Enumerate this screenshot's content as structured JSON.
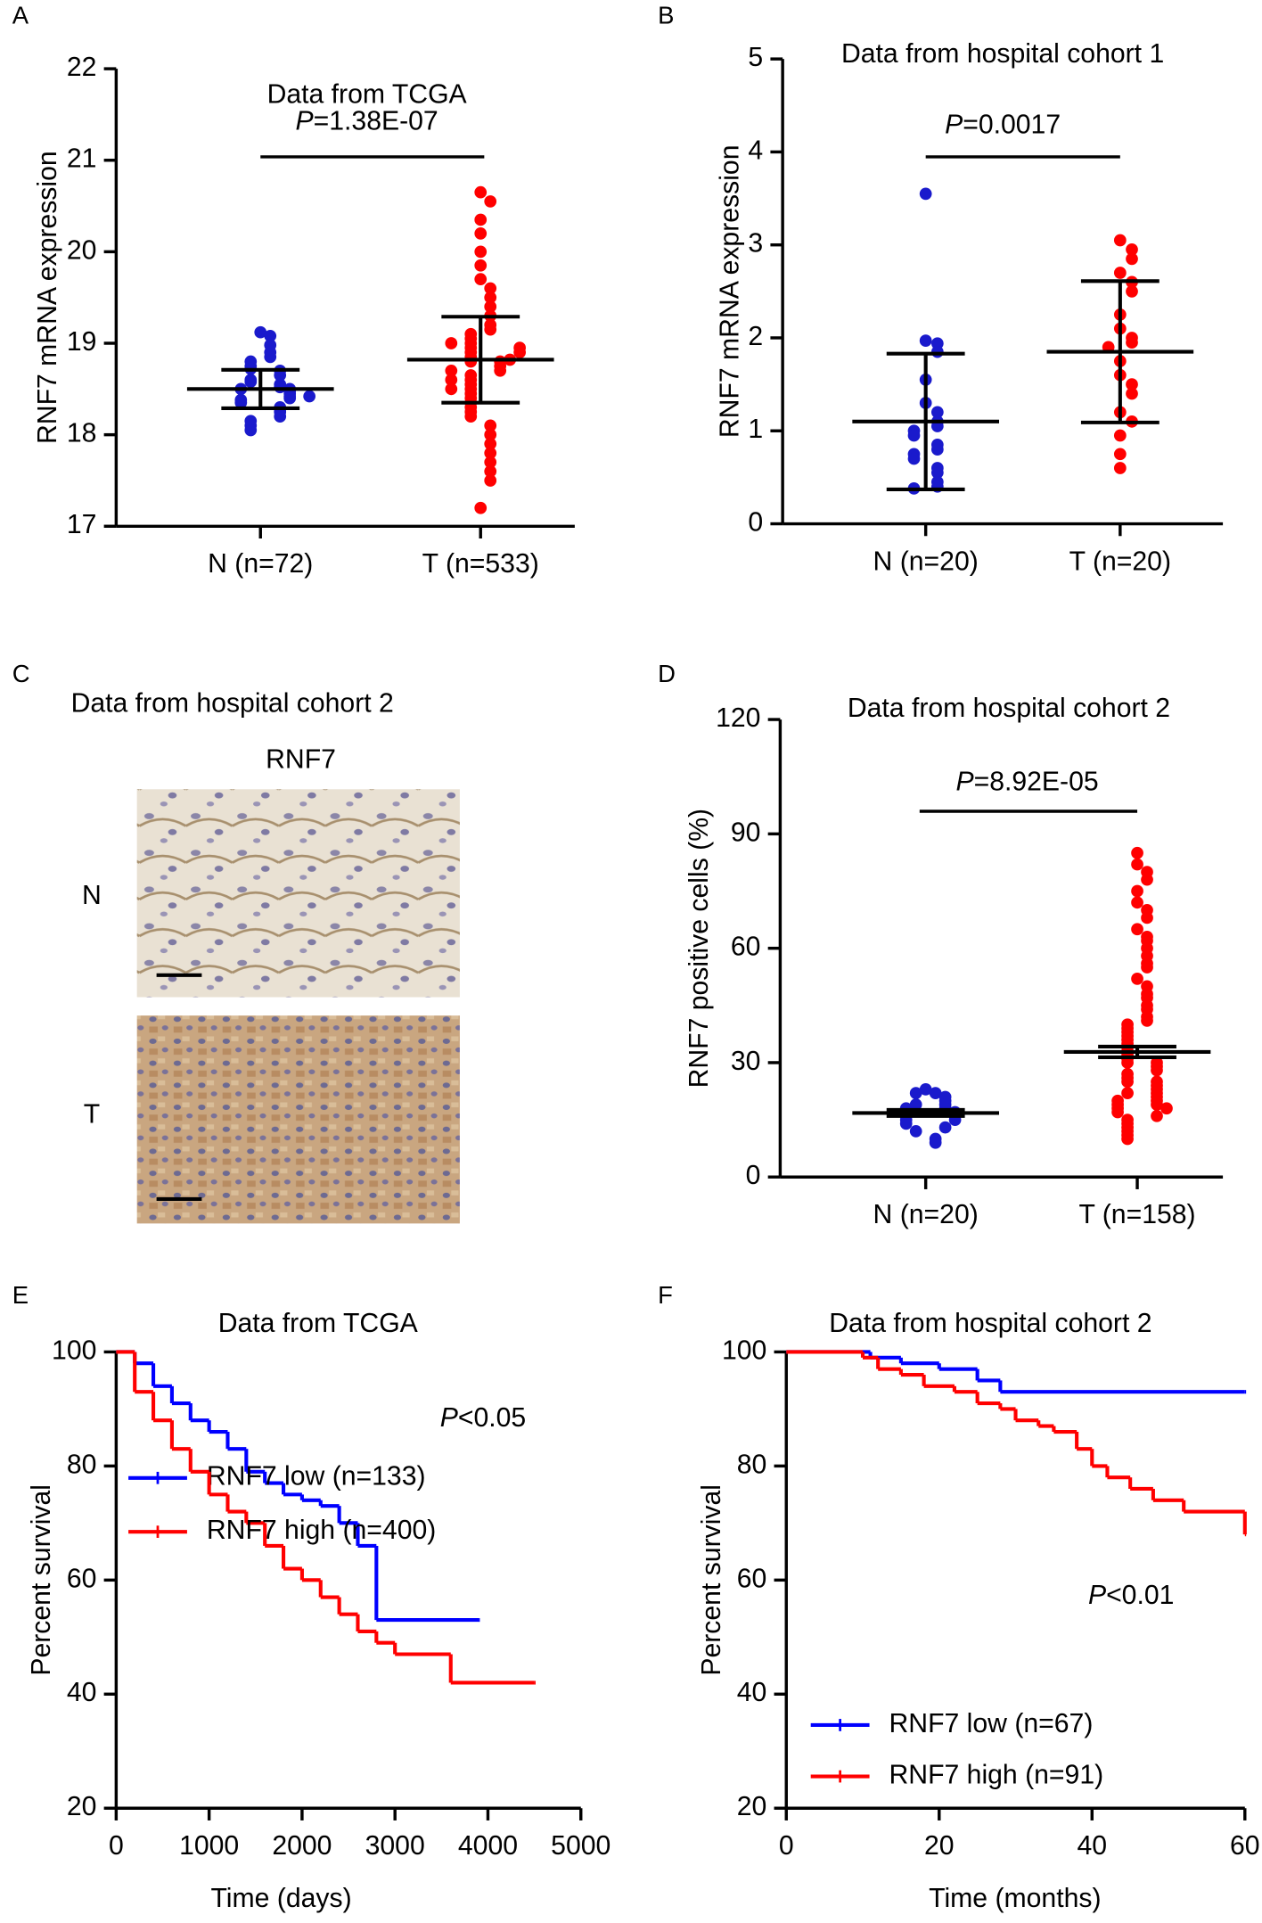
{
  "panel_labels": [
    "A",
    "B",
    "C",
    "D",
    "E",
    "F"
  ],
  "image_panel": {
    "title": "Data from hospital cohort 2",
    "stain": "RNF7",
    "rows": [
      "N",
      "T"
    ]
  },
  "chart_data": [
    {
      "type": "dot",
      "title": "Data from TCGA",
      "ylabel": "RNF7 mRNA expression",
      "p_prefix": "P",
      "p_text": "=1.38E-07",
      "categories": [
        "N (n=72)",
        "T (n=533)"
      ],
      "colors": [
        "#1a1acc",
        "#ff0000"
      ],
      "values": [
        [
          19.12,
          19.08,
          18.98,
          18.9,
          18.85,
          18.8,
          18.75,
          18.72,
          18.7,
          18.65,
          18.6,
          18.58,
          18.55,
          18.52,
          18.5,
          18.5,
          18.48,
          18.45,
          18.42,
          18.4,
          18.38,
          18.35,
          18.3,
          18.28,
          18.25,
          18.2,
          18.15,
          18.1,
          18.05,
          18.42
        ],
        [
          20.65,
          20.55,
          20.35,
          20.2,
          20.0,
          19.85,
          19.7,
          19.6,
          19.5,
          19.4,
          19.3,
          19.2,
          19.15,
          19.1,
          19.05,
          19.0,
          18.95,
          18.9,
          18.85,
          18.8,
          18.8,
          18.75,
          18.7,
          18.65,
          18.6,
          18.55,
          18.5,
          18.45,
          18.4,
          18.35,
          18.3,
          18.25,
          18.2,
          18.1,
          18.0,
          17.9,
          17.8,
          17.7,
          17.6,
          17.5,
          17.2,
          18.82,
          18.9,
          18.7,
          18.6,
          19.0,
          18.5,
          18.95
        ]
      ],
      "means": [
        18.5,
        18.82
      ],
      "sds": [
        0.21,
        0.47
      ],
      "ylim": [
        17,
        22
      ],
      "yticks": [
        17,
        18,
        19,
        20,
        21,
        22
      ]
    },
    {
      "type": "dot",
      "title": "Data from hospital cohort 1",
      "ylabel": "RNF7 mRNA expression",
      "p_prefix": "P",
      "p_text": "=0.0017",
      "categories": [
        "N (n=20)",
        "T (n=20)"
      ],
      "colors": [
        "#1a1acc",
        "#ff0000"
      ],
      "values": [
        [
          3.55,
          1.97,
          1.94,
          1.85,
          1.55,
          1.3,
          1.2,
          1.1,
          1.05,
          1.0,
          0.95,
          0.85,
          0.8,
          0.75,
          0.7,
          0.6,
          0.55,
          0.45,
          0.4,
          0.38
        ],
        [
          3.05,
          2.95,
          2.85,
          2.7,
          2.6,
          2.5,
          2.25,
          2.1,
          2.0,
          1.95,
          1.9,
          1.75,
          1.6,
          1.5,
          1.4,
          1.2,
          1.1,
          0.95,
          0.75,
          0.6
        ]
      ],
      "means": [
        1.1,
        1.85
      ],
      "sds": [
        0.73,
        0.76
      ],
      "ylim": [
        0,
        5
      ],
      "yticks": [
        0,
        1,
        2,
        3,
        4,
        5
      ]
    },
    {
      "type": "dot",
      "title": "Data from hospital cohort 2",
      "ylabel": "RNF7 positive cells (%)",
      "p_prefix": "P",
      "p_text": "=8.92E-05",
      "categories": [
        "N (n=20)",
        "T (n=158)"
      ],
      "colors": [
        "#1a1acc",
        "#ff0000"
      ],
      "values": [
        [
          23,
          22,
          22,
          21,
          20,
          19,
          19,
          18,
          18,
          17,
          17,
          16,
          16,
          15,
          15,
          14,
          13,
          12,
          10,
          9
        ],
        [
          85,
          82,
          80,
          78,
          75,
          72,
          70,
          68,
          65,
          63,
          62,
          60,
          58,
          56,
          55,
          52,
          50,
          48,
          47,
          45,
          44,
          42,
          41,
          40,
          39,
          38,
          37,
          36,
          35,
          34,
          33,
          32,
          31,
          30,
          30,
          29,
          28,
          27,
          26,
          25,
          25,
          24,
          23,
          22,
          22,
          21,
          20,
          20,
          19,
          19,
          18,
          18,
          17,
          16,
          15,
          14,
          13,
          12,
          11,
          10
        ]
      ],
      "means": [
        16.8,
        32.8
      ],
      "sds": [
        0.8,
        1.4
      ],
      "ylim": [
        0,
        120
      ],
      "yticks": [
        0,
        30,
        60,
        90,
        120
      ]
    },
    {
      "type": "survival",
      "title": "Data from TCGA",
      "ylabel": "Percent survival",
      "xlabel": "Time (days)",
      "p_prefix": "P",
      "p_text": "<0.05",
      "series": [
        {
          "name": "RNF7 low (n=133)",
          "color": "#0000ff",
          "x": [
            0,
            200,
            400,
            600,
            800,
            1000,
            1200,
            1400,
            1600,
            1800,
            2000,
            2200,
            2400,
            2600,
            2800,
            3900
          ],
          "values": [
            100,
            98,
            94,
            91,
            88,
            86,
            83,
            79,
            77,
            75,
            74,
            73,
            70,
            66,
            53,
            53
          ]
        },
        {
          "name": "RNF7 high (n=400)",
          "color": "#ff0000",
          "x": [
            0,
            200,
            400,
            600,
            800,
            1000,
            1200,
            1400,
            1600,
            1800,
            2000,
            2200,
            2400,
            2600,
            2800,
            3000,
            3600,
            4500
          ],
          "values": [
            100,
            93,
            88,
            83,
            79,
            75,
            72,
            70,
            66,
            62,
            60,
            57,
            54,
            51,
            49,
            47,
            42,
            42
          ]
        }
      ],
      "xlim": [
        0,
        5000
      ],
      "xticks": [
        0,
        1000,
        2000,
        3000,
        4000,
        5000
      ],
      "ylim": [
        20,
        100
      ],
      "yticks": [
        20,
        40,
        60,
        80,
        100
      ]
    },
    {
      "type": "survival",
      "title": "Data from hospital cohort 2",
      "ylabel": "Percent survival",
      "xlabel": "Time (months)",
      "p_prefix": "P",
      "p_text": "<0.01",
      "series": [
        {
          "name": "RNF7 low (n=67)",
          "color": "#0000ff",
          "x": [
            0,
            11,
            15,
            20,
            25,
            28,
            60
          ],
          "values": [
            100,
            99,
            98,
            97,
            95,
            93,
            93
          ]
        },
        {
          "name": "RNF7 high (n=91)",
          "color": "#ff0000",
          "x": [
            0,
            10,
            12,
            15,
            18,
            22,
            25,
            28,
            30,
            33,
            35,
            38,
            40,
            42,
            45,
            48,
            52,
            60
          ],
          "values": [
            100,
            99,
            97,
            96,
            94,
            93,
            91,
            90,
            88,
            87,
            86,
            83,
            80,
            78,
            76,
            74,
            72,
            68
          ]
        }
      ],
      "xlim": [
        0,
        60
      ],
      "xticks": [
        0,
        20,
        40,
        60
      ],
      "ylim": [
        20,
        100
      ],
      "yticks": [
        20,
        40,
        60,
        80,
        100
      ]
    }
  ]
}
